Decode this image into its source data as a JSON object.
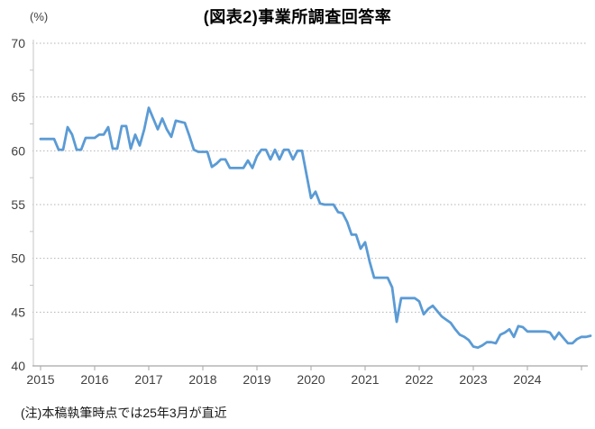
{
  "page": {
    "title": "(図表2)事業所調査回答率",
    "y_axis_unit": "(%)",
    "note": "(注)本稿執筆時点では25年3月が直近"
  },
  "colors": {
    "line": "#5B9BD5",
    "grid": "#b3b3b3",
    "axis": "#a6a6a6",
    "axis_minor": "#c6c6c6",
    "tick_text": "#404040",
    "title_text": "#000000"
  },
  "chart_data": {
    "type": "line",
    "title": "(図表2)事業所調査回答率",
    "ylabel": "(%)",
    "note": "(注)本稿執筆時点では25年3月が直近",
    "ylim": [
      40,
      70
    ],
    "yticks": [
      40,
      45,
      50,
      55,
      60,
      65,
      70
    ],
    "y_minor_step": 2.5,
    "grid": "horizontal-dotted",
    "legend": "none",
    "x_tick_labels": [
      "2015",
      "2016",
      "2017",
      "2018",
      "2019",
      "2020",
      "2021",
      "2022",
      "2023",
      "2024"
    ],
    "x_start": "2015-01",
    "x_end": "2025-03",
    "frequency": "monthly",
    "series": [
      {
        "name": "事業所調査回答率",
        "color": "#5B9BD5",
        "values": [
          61.1,
          61.1,
          61.1,
          61.1,
          60.1,
          60.1,
          62.2,
          61.5,
          60.1,
          60.1,
          61.2,
          61.2,
          61.2,
          61.5,
          61.5,
          62.2,
          60.2,
          60.2,
          62.3,
          62.3,
          60.2,
          61.5,
          60.5,
          62.0,
          64.0,
          63.0,
          62.0,
          63.0,
          62.0,
          61.3,
          62.8,
          62.7,
          62.6,
          61.4,
          60.1,
          59.9,
          59.9,
          59.9,
          58.5,
          58.8,
          59.2,
          59.2,
          58.4,
          58.4,
          58.4,
          58.4,
          59.1,
          58.4,
          59.5,
          60.1,
          60.1,
          59.2,
          60.1,
          59.2,
          60.1,
          60.1,
          59.2,
          60.0,
          60.0,
          57.8,
          55.6,
          56.2,
          55.1,
          55.0,
          55.0,
          55.0,
          54.3,
          54.2,
          53.4,
          52.2,
          52.2,
          50.9,
          51.5,
          49.7,
          48.2,
          48.2,
          48.2,
          48.2,
          47.3,
          44.1,
          46.3,
          46.3,
          46.3,
          46.3,
          46.0,
          44.8,
          45.3,
          45.6,
          45.1,
          44.6,
          44.3,
          44.0,
          43.4,
          42.9,
          42.7,
          42.4,
          41.8,
          41.7,
          41.9,
          42.2,
          42.2,
          42.1,
          42.9,
          43.1,
          43.4,
          42.7,
          43.7,
          43.6,
          43.2,
          43.2,
          43.2,
          43.2,
          43.2,
          43.1,
          42.5,
          43.1,
          42.6,
          42.1,
          42.1,
          42.5,
          42.7,
          42.7,
          42.8
        ]
      }
    ]
  }
}
